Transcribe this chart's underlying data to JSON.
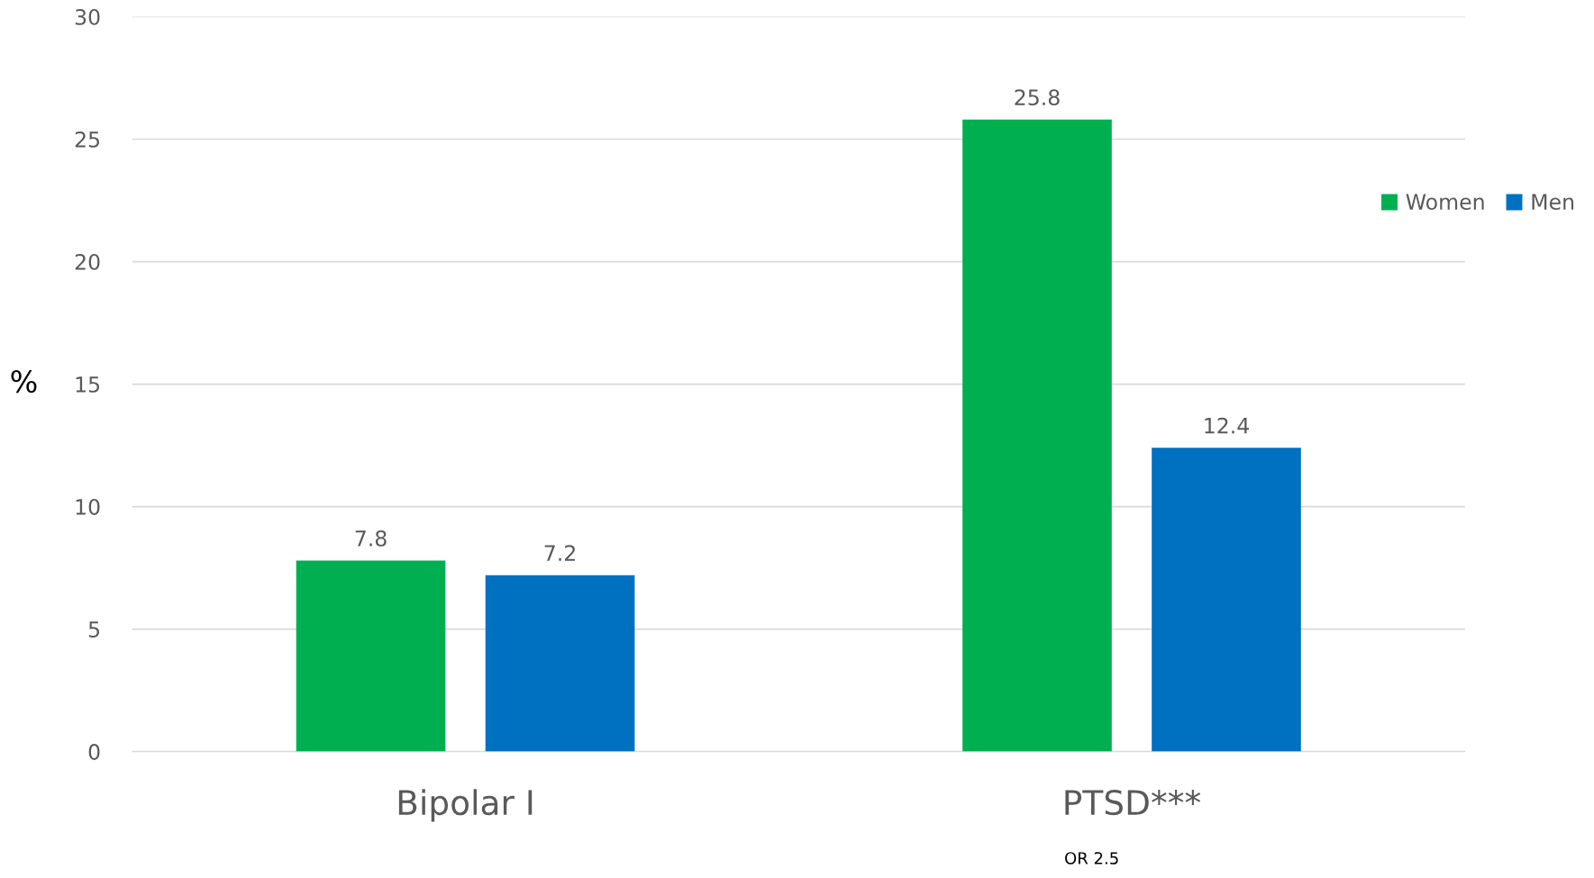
{
  "chart_data": {
    "type": "bar",
    "ylabel": "%",
    "categories": [
      "Bipolar I",
      "PTSD***"
    ],
    "series": [
      {
        "name": "Women",
        "color": "#00b050",
        "values": [
          7.8,
          25.8
        ]
      },
      {
        "name": "Men",
        "color": "#0070c0",
        "values": [
          7.2,
          12.4
        ]
      }
    ],
    "ylim": [
      0,
      30
    ],
    "yticks": [
      0,
      5,
      10,
      15,
      20,
      25,
      30
    ],
    "grid": "y",
    "legend": "right",
    "data_labels": true,
    "annotations": [
      "OR 2.5"
    ]
  }
}
